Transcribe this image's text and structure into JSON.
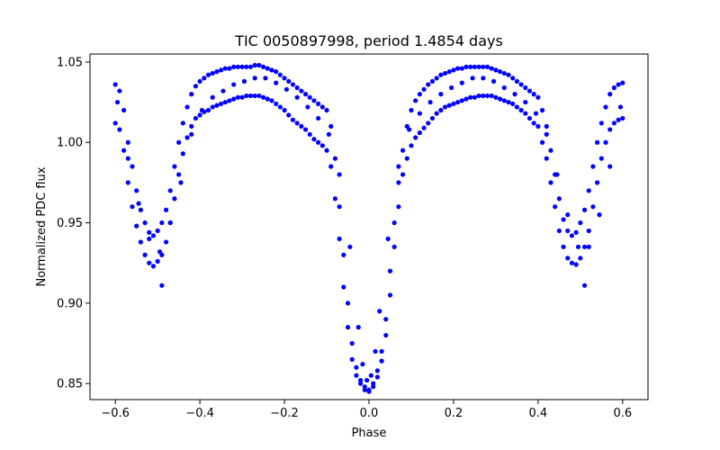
{
  "chart_data": {
    "type": "scatter",
    "title": "TIC 0050897998, period 1.4854 days",
    "xlabel": "Phase",
    "ylabel": "Normalized PDC flux",
    "xlim": [
      -0.66,
      0.66
    ],
    "ylim": [
      0.84,
      1.055
    ],
    "xticks": [
      -0.6,
      -0.4,
      -0.2,
      0.0,
      0.2,
      0.4,
      0.6
    ],
    "xtick_labels": [
      "−0.6",
      "−0.4",
      "−0.2",
      "0.0",
      "0.2",
      "0.4",
      "0.6"
    ],
    "yticks": [
      0.85,
      0.9,
      0.95,
      1.0,
      1.05
    ],
    "ytick_labels": [
      "0.85",
      "0.90",
      "0.95",
      "1.00",
      "1.05"
    ],
    "grid": false,
    "marker_color": "#0000ff",
    "series": [
      {
        "x": [
          -0.6,
          -0.59,
          -0.58,
          -0.57,
          -0.56,
          -0.55,
          -0.54,
          -0.53,
          -0.52,
          -0.51,
          -0.5,
          -0.49,
          -0.48,
          -0.47,
          -0.46,
          -0.45,
          -0.44,
          -0.43,
          -0.42,
          -0.41,
          -0.4,
          -0.39,
          -0.38,
          -0.37,
          -0.36,
          -0.35,
          -0.34,
          -0.33,
          -0.32,
          -0.31,
          -0.3,
          -0.29,
          -0.28,
          -0.27,
          -0.26,
          -0.25,
          -0.24,
          -0.23,
          -0.22,
          -0.21,
          -0.2,
          -0.19,
          -0.18,
          -0.17,
          -0.16,
          -0.15,
          -0.14,
          -0.13,
          -0.12,
          -0.11,
          -0.1,
          -0.09,
          -0.08,
          -0.07,
          -0.06,
          -0.05,
          -0.04,
          -0.03,
          -0.02,
          -0.01,
          0.0,
          0.01,
          0.02,
          0.03,
          0.04,
          0.05,
          0.06,
          0.07,
          0.08,
          0.09,
          0.1,
          0.11,
          0.12,
          0.13,
          0.14,
          0.15,
          0.16,
          0.17,
          0.18,
          0.19,
          0.2,
          0.21,
          0.22,
          0.23,
          0.24,
          0.25,
          0.26,
          0.27,
          0.28,
          0.29,
          0.3,
          0.31,
          0.32,
          0.33,
          0.34,
          0.35,
          0.36,
          0.37,
          0.38,
          0.39,
          0.4,
          0.41,
          0.42,
          0.43,
          0.44,
          0.45,
          0.46,
          0.47,
          0.48,
          0.49,
          0.5,
          0.51,
          0.52,
          0.53,
          0.54,
          0.55,
          0.56,
          0.57,
          0.58,
          0.59,
          0.6
        ],
        "y": [
          1.036,
          1.032,
          1.02,
          1.0,
          0.985,
          0.97,
          0.958,
          0.95,
          0.944,
          0.942,
          0.945,
          0.95,
          0.958,
          0.97,
          0.985,
          1.0,
          1.012,
          1.022,
          1.03,
          1.035,
          1.038,
          1.04,
          1.042,
          1.043,
          1.044,
          1.045,
          1.046,
          1.046,
          1.047,
          1.047,
          1.047,
          1.047,
          1.047,
          1.048,
          1.048,
          1.047,
          1.046,
          1.045,
          1.044,
          1.042,
          1.04,
          1.038,
          1.036,
          1.034,
          1.032,
          1.03,
          1.028,
          1.026,
          1.024,
          1.022,
          1.02,
          1.01,
          0.99,
          0.96,
          0.93,
          0.9,
          0.875,
          0.86,
          0.852,
          0.848,
          0.846,
          0.85,
          0.858,
          0.87,
          0.89,
          0.92,
          0.95,
          0.975,
          0.995,
          1.01,
          1.02,
          1.026,
          1.03,
          1.033,
          1.036,
          1.038,
          1.04,
          1.042,
          1.043,
          1.044,
          1.045,
          1.046,
          1.046,
          1.047,
          1.047,
          1.047,
          1.047,
          1.047,
          1.047,
          1.046,
          1.045,
          1.044,
          1.043,
          1.042,
          1.04,
          1.038,
          1.036,
          1.034,
          1.032,
          1.03,
          1.028,
          1.02,
          1.01,
          0.995,
          0.98,
          0.965,
          0.952,
          0.945,
          0.942,
          0.944,
          0.95,
          0.958,
          0.97,
          0.985,
          1.0,
          1.012,
          1.022,
          1.03,
          1.034,
          1.036,
          1.037
        ]
      },
      {
        "x": [
          -0.6,
          -0.59,
          -0.58,
          -0.57,
          -0.56,
          -0.55,
          -0.54,
          -0.53,
          -0.52,
          -0.51,
          -0.5,
          -0.49,
          -0.48,
          -0.47,
          -0.46,
          -0.45,
          -0.44,
          -0.43,
          -0.42,
          -0.41,
          -0.4,
          -0.39,
          -0.38,
          -0.37,
          -0.36,
          -0.35,
          -0.34,
          -0.33,
          -0.32,
          -0.31,
          -0.3,
          -0.29,
          -0.28,
          -0.27,
          -0.26,
          -0.25,
          -0.24,
          -0.23,
          -0.22,
          -0.21,
          -0.2,
          -0.19,
          -0.18,
          -0.17,
          -0.16,
          -0.15,
          -0.14,
          -0.13,
          -0.12,
          -0.11,
          -0.1,
          -0.09,
          -0.08,
          -0.07,
          -0.06,
          -0.05,
          -0.04,
          -0.03,
          -0.02,
          -0.01,
          0.0,
          0.01,
          0.02,
          0.03,
          0.04,
          0.05,
          0.06,
          0.07,
          0.08,
          0.09,
          0.1,
          0.11,
          0.12,
          0.13,
          0.14,
          0.15,
          0.16,
          0.17,
          0.18,
          0.19,
          0.2,
          0.21,
          0.22,
          0.23,
          0.24,
          0.25,
          0.26,
          0.27,
          0.28,
          0.29,
          0.3,
          0.31,
          0.32,
          0.33,
          0.34,
          0.35,
          0.36,
          0.37,
          0.38,
          0.39,
          0.4,
          0.41,
          0.42,
          0.43,
          0.44,
          0.45,
          0.46,
          0.47,
          0.48,
          0.49,
          0.5,
          0.51,
          0.52,
          0.53,
          0.54,
          0.55,
          0.56,
          0.57,
          0.58,
          0.59,
          0.6
        ],
        "y": [
          1.012,
          1.008,
          0.995,
          0.975,
          0.96,
          0.948,
          0.938,
          0.93,
          0.925,
          0.923,
          0.926,
          0.93,
          0.938,
          0.95,
          0.965,
          0.98,
          0.993,
          1.003,
          1.01,
          1.015,
          1.017,
          1.019,
          1.02,
          1.022,
          1.023,
          1.024,
          1.025,
          1.026,
          1.027,
          1.028,
          1.028,
          1.029,
          1.029,
          1.029,
          1.029,
          1.028,
          1.027,
          1.026,
          1.024,
          1.022,
          1.02,
          1.017,
          1.014,
          1.012,
          1.01,
          1.008,
          1.005,
          1.002,
          1.0,
          0.998,
          0.995,
          0.985,
          0.965,
          0.94,
          0.91,
          0.885,
          0.865,
          0.855,
          0.85,
          0.846,
          0.845,
          0.848,
          0.854,
          0.864,
          0.88,
          0.905,
          0.935,
          0.96,
          0.98,
          0.99,
          0.998,
          1.003,
          1.006,
          1.009,
          1.012,
          1.015,
          1.018,
          1.02,
          1.022,
          1.023,
          1.024,
          1.025,
          1.026,
          1.027,
          1.028,
          1.028,
          1.029,
          1.029,
          1.029,
          1.029,
          1.028,
          1.027,
          1.026,
          1.025,
          1.024,
          1.022,
          1.02,
          1.018,
          1.015,
          1.012,
          1.01,
          1.0,
          0.99,
          0.975,
          0.96,
          0.945,
          0.935,
          0.928,
          0.925,
          0.924,
          0.928,
          0.935,
          0.945,
          0.96,
          0.975,
          0.99,
          1.0,
          1.008,
          1.012,
          1.014,
          1.015
        ]
      },
      {
        "x": [
          -0.595,
          -0.57,
          -0.545,
          -0.52,
          -0.495,
          -0.47,
          -0.445,
          -0.42,
          -0.395,
          -0.37,
          -0.345,
          -0.32,
          -0.295,
          -0.27,
          -0.245,
          -0.22,
          -0.195,
          -0.17,
          -0.145,
          -0.12,
          -0.095,
          -0.07,
          -0.045,
          -0.025,
          -0.015,
          -0.005,
          0.005,
          0.015,
          0.025,
          0.045,
          0.07,
          0.095,
          0.12,
          0.145,
          0.17,
          0.195,
          0.22,
          0.245,
          0.27,
          0.295,
          0.32,
          0.345,
          0.37,
          0.395,
          0.42,
          0.445,
          0.47,
          0.495,
          0.52,
          0.545,
          0.57,
          0.595
        ],
        "y": [
          1.025,
          0.99,
          0.962,
          0.94,
          0.932,
          0.95,
          0.975,
          1.005,
          1.02,
          1.028,
          1.032,
          1.036,
          1.038,
          1.04,
          1.04,
          1.037,
          1.033,
          1.028,
          1.022,
          1.015,
          1.005,
          0.98,
          0.935,
          0.885,
          0.862,
          0.852,
          0.855,
          0.87,
          0.895,
          0.94,
          0.985,
          1.008,
          1.018,
          1.025,
          1.03,
          1.034,
          1.037,
          1.04,
          1.04,
          1.038,
          1.034,
          1.03,
          1.025,
          1.018,
          1.005,
          0.98,
          0.955,
          0.935,
          0.935,
          0.955,
          0.985,
          1.022
        ]
      },
      {
        "x": [
          -0.49,
          0.51
        ],
        "y": [
          0.911,
          0.911
        ]
      }
    ]
  }
}
